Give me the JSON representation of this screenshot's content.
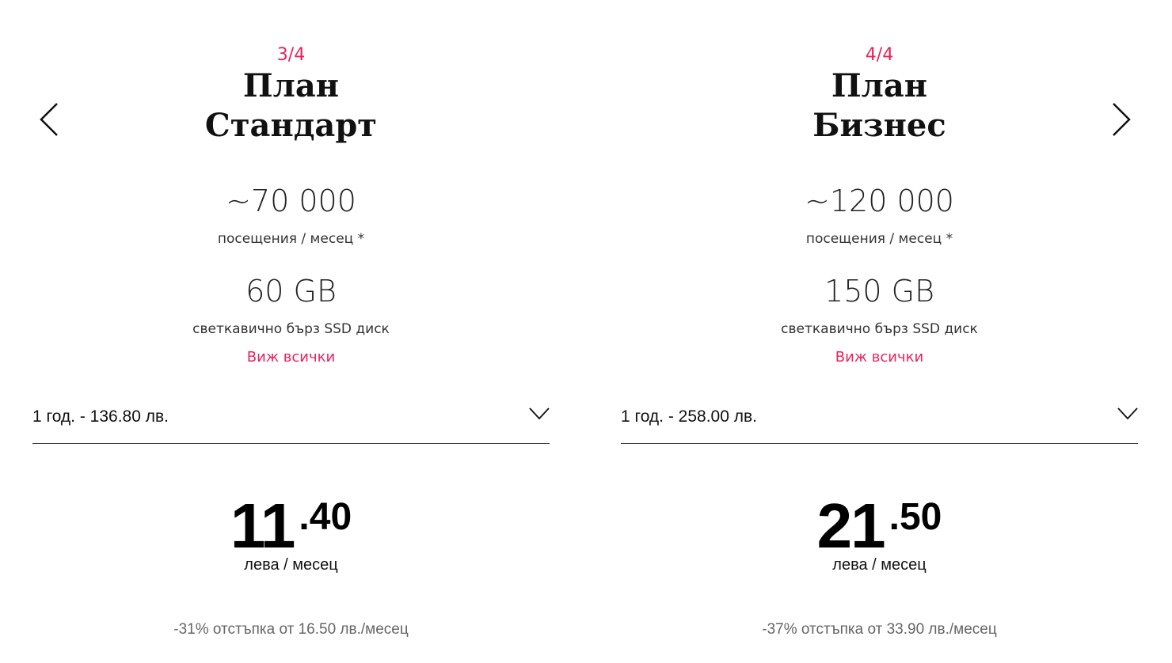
{
  "accent_color": "#e8245a",
  "nav": {
    "prev_icon": "chevron-left-icon",
    "next_icon": "chevron-right-icon"
  },
  "plans": [
    {
      "counter": "3/4",
      "title_line1": "План",
      "title_line2": "Стандарт",
      "visits": "~70 000",
      "visits_label": "посещения / месец *",
      "disk": "60 GB",
      "disk_label": "светкавично бърз SSD диск",
      "see_all": "Виж всички",
      "period_selected": "1 год. - 136.80 лв.",
      "price_int": "11",
      "price_dec": ".40",
      "price_unit": "лева / месец",
      "discount": "-31% отстъпка от 16.50 лв./месец"
    },
    {
      "counter": "4/4",
      "title_line1": "План",
      "title_line2": "Бизнес",
      "visits": "~120 000",
      "visits_label": "посещения / месец *",
      "disk": "150 GB",
      "disk_label": "светкавично бърз SSD диск",
      "see_all": "Виж всички",
      "period_selected": "1 год. - 258.00 лв.",
      "price_int": "21",
      "price_dec": ".50",
      "price_unit": "лева / месец",
      "discount": "-37% отстъпка от 33.90 лв./месец"
    }
  ]
}
